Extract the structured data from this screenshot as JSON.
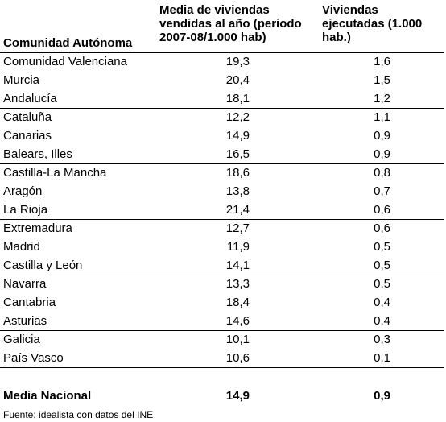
{
  "header": {
    "col1": "Comunidad Autónoma",
    "col2": "Media de viviendas vendidas al año (periodo 2007-08/1.000 hab)",
    "col3": "Viviendas ejecutadas (1.000 hab.)"
  },
  "rows": [
    {
      "region": "Comunidad Valenciana",
      "sold": "19,3",
      "built": "1,6"
    },
    {
      "region": "Murcia",
      "sold": "20,4",
      "built": "1,5"
    },
    {
      "region": "Andalucía",
      "sold": "18,1",
      "built": "1,2"
    },
    {
      "region": "Cataluña",
      "sold": "12,2",
      "built": "1,1"
    },
    {
      "region": "Canarias",
      "sold": "14,9",
      "built": "0,9"
    },
    {
      "region": "Balears, Illes",
      "sold": "16,5",
      "built": "0,9"
    },
    {
      "region": "Castilla-La Mancha",
      "sold": "18,6",
      "built": "0,8"
    },
    {
      "region": "Aragón",
      "sold": "13,8",
      "built": "0,7"
    },
    {
      "region": "La Rioja",
      "sold": "21,4",
      "built": "0,6"
    },
    {
      "region": "Extremadura",
      "sold": "12,7",
      "built": "0,6"
    },
    {
      "region": "Madrid",
      "sold": "11,9",
      "built": "0,5"
    },
    {
      "region": "Castilla y León",
      "sold": "14,1",
      "built": "0,5"
    },
    {
      "region": "Navarra",
      "sold": "13,3",
      "built": "0,5"
    },
    {
      "region": "Cantabria",
      "sold": "18,4",
      "built": "0,4"
    },
    {
      "region": "Asturias",
      "sold": "14,6",
      "built": "0,4"
    },
    {
      "region": "Galicia",
      "sold": "10,1",
      "built": "0,3"
    },
    {
      "region": "País Vasco",
      "sold": "10,6",
      "built": "0,1"
    }
  ],
  "total": {
    "region": "Media Nacional",
    "sold": "14,9",
    "built": "0,9"
  },
  "source": "Fuente: idealista con datos del INE"
}
